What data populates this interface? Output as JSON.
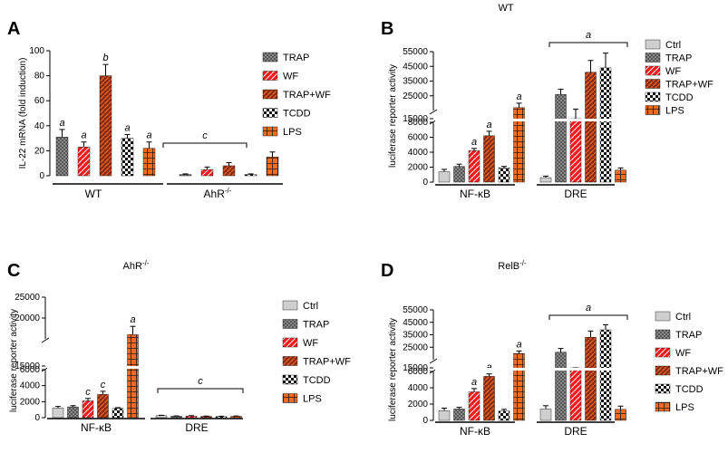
{
  "colors": {
    "ctrl": "#c8c8c8",
    "trap": "#555555",
    "wf": "#ee1c1c",
    "trapwf": "#8a2a10",
    "tcdd": "#111111",
    "lps": "#f06a22"
  },
  "chart_data": [
    {
      "type": "bar",
      "panel": "A",
      "title": "",
      "ylabel": "IL-22 mRNA (fold induction)",
      "yticks": [
        "0",
        "20",
        "40",
        "60",
        "80",
        "100"
      ],
      "ylim": [
        0,
        100
      ],
      "groups": [
        "WT",
        "AhR-/-"
      ],
      "series": [
        {
          "name": "TRAP",
          "key": "trap",
          "values": [
            31,
            1
          ],
          "errors": [
            6,
            0.5
          ]
        },
        {
          "name": "WF",
          "key": "wf",
          "values": [
            23,
            5
          ],
          "errors": [
            4,
            2
          ]
        },
        {
          "name": "TRAP+WF",
          "key": "trapwf",
          "values": [
            80,
            8
          ],
          "errors": [
            9,
            2.5
          ]
        },
        {
          "name": "TCDD",
          "key": "tcdd",
          "values": [
            30,
            1
          ],
          "errors": [
            3,
            0.5
          ]
        },
        {
          "name": "LPS",
          "key": "lps",
          "values": [
            22,
            15
          ],
          "errors": [
            5,
            4
          ]
        }
      ],
      "annotations": {
        "WT": [
          "a",
          "a",
          "b",
          "a",
          "a"
        ],
        "AhR-/-": "c"
      }
    },
    {
      "type": "bar",
      "panel": "B",
      "title": "WT",
      "ylabel": "luciferase reporter activity",
      "yticks_lower": [
        "0",
        "2000",
        "4000",
        "6000",
        "8000"
      ],
      "yticks_upper": [
        "15000",
        "25000",
        "35000",
        "45000",
        "55000"
      ],
      "groups": [
        "NF-κB",
        "DRE"
      ],
      "series": [
        {
          "name": "Ctrl",
          "key": "ctrl",
          "values": [
            1400,
            600
          ],
          "errors": [
            300,
            200
          ]
        },
        {
          "name": "TRAP",
          "key": "trap",
          "values": [
            2100,
            26000
          ],
          "errors": [
            300,
            3500
          ]
        },
        {
          "name": "WF",
          "key": "wf",
          "values": [
            4200,
            13500
          ],
          "errors": [
            300,
            2500
          ]
        },
        {
          "name": "TRAP+WF",
          "key": "trapwf",
          "values": [
            6200,
            41000
          ],
          "errors": [
            600,
            8000
          ]
        },
        {
          "name": "TCDD",
          "key": "tcdd",
          "values": [
            1900,
            44000
          ],
          "errors": [
            200,
            10000
          ]
        },
        {
          "name": "LPS",
          "key": "lps",
          "values": [
            17000,
            1600
          ],
          "errors": [
            3000,
            300
          ]
        }
      ],
      "annotations": {
        "NF-κB": [
          "",
          "",
          "a",
          "a",
          "",
          "a"
        ],
        "DRE": "a"
      }
    },
    {
      "type": "bar",
      "panel": "C",
      "title": "AhR-/-",
      "ylabel": "luciferase reporter activity",
      "yticks_lower": [
        "0",
        "2000",
        "4000",
        "6000"
      ],
      "yticks_upper": [
        "15000",
        "20000",
        "25000"
      ],
      "groups": [
        "NF-κB",
        "DRE"
      ],
      "series": [
        {
          "name": "Ctrl",
          "key": "ctrl",
          "values": [
            1200,
            250
          ],
          "errors": [
            200,
            50
          ]
        },
        {
          "name": "TRAP",
          "key": "trap",
          "values": [
            1350,
            180
          ],
          "errors": [
            150,
            40
          ]
        },
        {
          "name": "WF",
          "key": "wf",
          "values": [
            2100,
            200
          ],
          "errors": [
            300,
            50
          ]
        },
        {
          "name": "TRAP+WF",
          "key": "trapwf",
          "values": [
            2900,
            160
          ],
          "errors": [
            400,
            40
          ]
        },
        {
          "name": "TCDD",
          "key": "tcdd",
          "values": [
            1150,
            150
          ],
          "errors": [
            100,
            30
          ]
        },
        {
          "name": "LPS",
          "key": "lps",
          "values": [
            16000,
            170
          ],
          "errors": [
            2000,
            40
          ]
        }
      ],
      "annotations": {
        "NF-κB": [
          "",
          "",
          "c",
          "c",
          "",
          "a"
        ],
        "DRE": "c"
      }
    },
    {
      "type": "bar",
      "panel": "D",
      "title": "RelB-/-",
      "ylabel": "luciferase reporter activity",
      "yticks_lower": [
        "0",
        "2000",
        "4000",
        "6000"
      ],
      "yticks_upper": [
        "15000",
        "25000",
        "35000",
        "45000",
        "55000"
      ],
      "groups": [
        "NF-κB",
        "DRE"
      ],
      "series": [
        {
          "name": "Ctrl",
          "key": "ctrl",
          "values": [
            1200,
            1400
          ],
          "errors": [
            300,
            400
          ]
        },
        {
          "name": "TRAP",
          "key": "trap",
          "values": [
            1400,
            21000
          ],
          "errors": [
            200,
            3000
          ]
        },
        {
          "name": "WF",
          "key": "wf",
          "values": [
            3500,
            12500
          ],
          "errors": [
            400,
            2500
          ]
        },
        {
          "name": "TRAP+WF",
          "key": "trapwf",
          "values": [
            5400,
            33000
          ],
          "errors": [
            300,
            5000
          ]
        },
        {
          "name": "TCDD",
          "key": "tcdd",
          "values": [
            1150,
            39000
          ],
          "errors": [
            200,
            4000
          ]
        },
        {
          "name": "LPS",
          "key": "lps",
          "values": [
            20000,
            1350
          ],
          "errors": [
            2000,
            400
          ]
        }
      ],
      "annotations": {
        "NF-κB": [
          "",
          "",
          "a",
          "a",
          "",
          "a"
        ],
        "DRE": "a"
      }
    }
  ]
}
